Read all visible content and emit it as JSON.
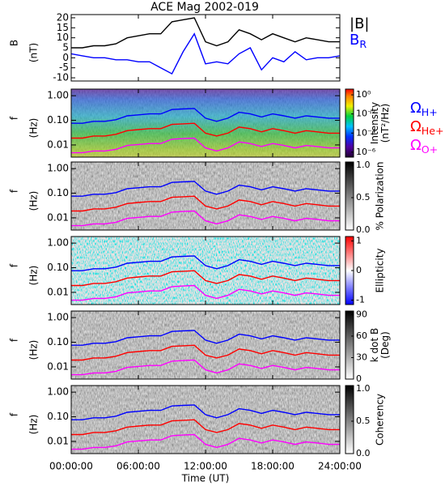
{
  "chart_data": [
    {
      "type": "line",
      "title": "ACE Mag 2002-019",
      "ylabel": [
        "B",
        "(nT)"
      ],
      "x": [
        0,
        1,
        2,
        3,
        4,
        5,
        6,
        7,
        8,
        9,
        10,
        11,
        12,
        13,
        14,
        15,
        16,
        17,
        18,
        19,
        20,
        21,
        22,
        23,
        24
      ],
      "xlim": [
        0,
        24
      ],
      "xticks": [
        0,
        6,
        12,
        18,
        24
      ],
      "ylim": [
        -11.6,
        21.6
      ],
      "yticks": [
        -10,
        -5,
        0,
        5,
        10,
        15,
        20
      ],
      "series": [
        {
          "name": "|B|",
          "color": "#000000",
          "values": [
            5,
            5,
            6,
            6,
            7,
            10,
            11,
            12,
            12,
            18,
            19,
            20,
            8,
            6,
            8,
            14,
            12,
            9,
            12,
            10,
            8,
            10,
            9,
            8,
            8
          ]
        },
        {
          "name": "B",
          "subscript": "R",
          "color": "#0000ff",
          "values": [
            2,
            1,
            0,
            0,
            -1,
            -1,
            -2,
            -2,
            -5,
            -8,
            3,
            12,
            -3,
            -2,
            -3,
            2,
            5,
            -6,
            0,
            -2,
            3,
            -1,
            0,
            0,
            1
          ]
        }
      ]
    },
    {
      "type": "spectrogram",
      "ylabel": [
        "f",
        "(Hz)"
      ],
      "xlabel": "Time (UT)",
      "log_y": true,
      "x": [
        0,
        1,
        2,
        3,
        4,
        5,
        6,
        7,
        8,
        9,
        10,
        11,
        12,
        13,
        14,
        15,
        16,
        17,
        18,
        19,
        20,
        21,
        22,
        23,
        24
      ],
      "xlim": [
        0,
        24
      ],
      "xticks": [
        {
          "value": 0,
          "label": "00:00:00"
        },
        {
          "value": 6,
          "label": "06:00:00"
        },
        {
          "value": 12,
          "label": "12:00:00"
        },
        {
          "value": 18,
          "label": "18:00:00"
        },
        {
          "value": 24,
          "label": "24:00:00"
        }
      ],
      "ylim": [
        0.0032,
        1.85
      ],
      "yticks": [
        {
          "value": 0.01,
          "label": "0.01"
        },
        {
          "value": 0.1,
          "label": "0.10"
        },
        {
          "value": 1,
          "label": "1.00"
        }
      ],
      "series": [
        {
          "name": "Ω",
          "subscript": "H+",
          "color": "#0000ff",
          "values": [
            0.076,
            0.076,
            0.091,
            0.091,
            0.106,
            0.152,
            0.167,
            0.182,
            0.182,
            0.274,
            0.289,
            0.304,
            0.122,
            0.091,
            0.122,
            0.213,
            0.182,
            0.137,
            0.182,
            0.152,
            0.122,
            0.152,
            0.137,
            0.122,
            0.122
          ]
        },
        {
          "name": "Ω",
          "subscript": "He+",
          "color": "#ff0000",
          "values": [
            0.019,
            0.019,
            0.023,
            0.023,
            0.027,
            0.038,
            0.042,
            0.046,
            0.046,
            0.068,
            0.072,
            0.076,
            0.03,
            0.023,
            0.03,
            0.053,
            0.046,
            0.034,
            0.046,
            0.038,
            0.03,
            0.038,
            0.034,
            0.03,
            0.03
          ]
        },
        {
          "name": "Ω",
          "subscript": "O+",
          "color": "#ff00ff",
          "values": [
            0.0048,
            0.0048,
            0.0057,
            0.0057,
            0.0066,
            0.0095,
            0.0104,
            0.0114,
            0.0114,
            0.0171,
            0.0181,
            0.019,
            0.0076,
            0.0057,
            0.0076,
            0.0133,
            0.0114,
            0.0086,
            0.0114,
            0.0095,
            0.0076,
            0.0095,
            0.0086,
            0.0076,
            0.0076
          ]
        }
      ],
      "panels": [
        {
          "colorbar_label": [
            "Intensity",
            "(nT²/Hz)"
          ],
          "colormap": "rainbow",
          "clim": [
            3e-07,
            4
          ],
          "log_c": true,
          "cticks": [
            {
              "value": 1,
              "label": "10⁰"
            },
            {
              "value": 0.01,
              "label": "10⁻²"
            },
            {
              "value": 0.0001,
              "label": "10⁻⁴"
            },
            {
              "value": 1e-06,
              "label": "10⁻⁶"
            }
          ]
        },
        {
          "colorbar_label": [
            "% Polarization"
          ],
          "colormap": "gray",
          "clim": [
            0,
            1.05
          ],
          "cticks": [
            {
              "value": 0,
              "label": "0.0"
            },
            {
              "value": 0.5,
              "label": "0.5"
            },
            {
              "value": 1,
              "label": "1.0"
            }
          ]
        },
        {
          "colorbar_label": [
            "Ellipticity"
          ],
          "colormap": "bwr",
          "clim": [
            -1.15,
            1.15
          ],
          "cticks": [
            -1,
            0,
            1
          ]
        },
        {
          "colorbar_label": [
            "k dot B",
            "(Deg)"
          ],
          "colormap": "gray",
          "clim": [
            0,
            95
          ],
          "cticks": [
            0,
            30,
            60,
            90
          ]
        },
        {
          "colorbar_label": [
            "Coherency"
          ],
          "colormap": "gray",
          "clim": [
            0,
            1.05
          ],
          "cticks": [
            {
              "value": 0,
              "label": "0.0"
            },
            {
              "value": 0.5,
              "label": "0.5"
            },
            {
              "value": 1,
              "label": "1.0"
            }
          ]
        }
      ]
    }
  ]
}
